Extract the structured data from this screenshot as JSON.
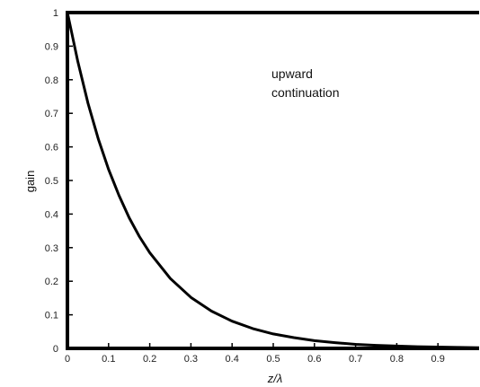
{
  "chart_data": {
    "type": "line",
    "title": "",
    "xlabel": "z/λ",
    "ylabel": "gain",
    "xlim": [
      0,
      1
    ],
    "ylim": [
      0,
      1
    ],
    "x_ticks": [
      "0",
      "0.1",
      "0.2",
      "0.3",
      "0.4",
      "0.5",
      "0.6",
      "0.7",
      "0.8",
      "0.9"
    ],
    "y_ticks": [
      "0",
      "0.1",
      "0.2",
      "0.3",
      "0.4",
      "0.5",
      "0.6",
      "0.7",
      "0.8",
      "0.9",
      "1"
    ],
    "annotation": [
      "upward",
      "continuation"
    ],
    "grid": false,
    "series": [
      {
        "x": [
          0,
          0.025,
          0.05,
          0.075,
          0.1,
          0.125,
          0.15,
          0.175,
          0.2,
          0.25,
          0.3,
          0.35,
          0.4,
          0.45,
          0.5,
          0.55,
          0.6,
          0.65,
          0.7,
          0.75,
          0.8,
          0.85,
          0.9,
          0.95,
          1.0
        ],
        "y": [
          1,
          0.855,
          0.73,
          0.624,
          0.533,
          0.456,
          0.389,
          0.333,
          0.285,
          0.208,
          0.152,
          0.111,
          0.081,
          0.059,
          0.043,
          0.032,
          0.023,
          0.017,
          0.012,
          0.009,
          0.007,
          0.005,
          0.004,
          0.003,
          0.002
        ]
      }
    ]
  }
}
